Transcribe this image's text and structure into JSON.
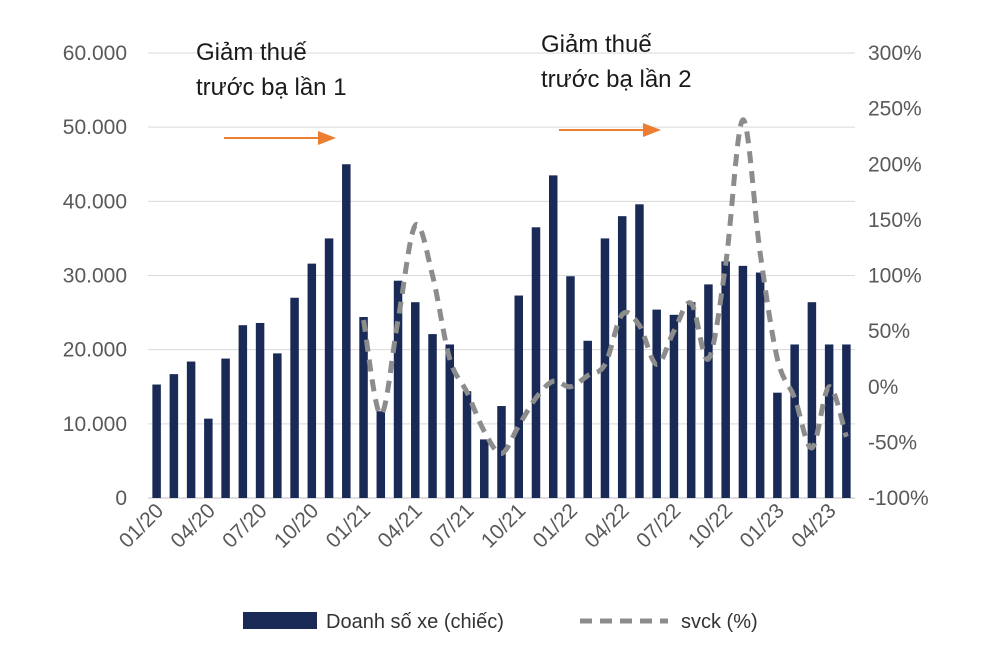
{
  "chart_data": {
    "type": "bar",
    "categories": [
      "01/20",
      "02/20",
      "03/20",
      "04/20",
      "05/20",
      "06/20",
      "07/20",
      "08/20",
      "09/20",
      "10/20",
      "11/20",
      "12/20",
      "01/21",
      "02/21",
      "03/21",
      "04/21",
      "05/21",
      "06/21",
      "07/21",
      "08/21",
      "09/21",
      "10/21",
      "11/21",
      "12/21",
      "01/22",
      "02/22",
      "03/22",
      "04/22",
      "05/22",
      "06/22",
      "07/22",
      "08/22",
      "09/22",
      "10/22",
      "11/22",
      "12/22",
      "01/23",
      "02/23",
      "03/23",
      "04/23",
      "05/23"
    ],
    "x_tick_labels": [
      "01/20",
      "04/20",
      "07/20",
      "10/20",
      "01/21",
      "04/21",
      "07/21",
      "10/21",
      "01/22",
      "04/22",
      "07/22",
      "10/22",
      "01/23",
      "04/23"
    ],
    "series": [
      {
        "name": "Doanh số xe (chiếc)",
        "axis": "left",
        "kind": "bar",
        "values": [
          15300,
          16700,
          18400,
          10700,
          18800,
          23300,
          23600,
          19500,
          27000,
          31600,
          35000,
          45000,
          24400,
          11700,
          29300,
          26400,
          22100,
          20700,
          14400,
          7900,
          12400,
          27300,
          36500,
          43500,
          29900,
          21200,
          35000,
          38000,
          39600,
          25400,
          24700,
          26400,
          28800,
          31900,
          31300,
          30400,
          14200,
          20700,
          26400,
          20700,
          20700
        ]
      },
      {
        "name": "svck (%)",
        "axis": "right",
        "kind": "line",
        "values": [
          null,
          null,
          null,
          null,
          null,
          null,
          null,
          null,
          null,
          null,
          null,
          null,
          60,
          -25,
          60,
          145,
          100,
          25,
          -5,
          -40,
          -60,
          -35,
          -10,
          5,
          0,
          10,
          20,
          65,
          55,
          20,
          50,
          75,
          25,
          110,
          240,
          120,
          25,
          -10,
          -55,
          0,
          -45
        ]
      }
    ],
    "left_axis": {
      "ticks": [
        "0",
        "10.000",
        "20.000",
        "30.000",
        "40.000",
        "50.000",
        "60.000"
      ],
      "ylim": [
        0,
        60000
      ]
    },
    "right_axis": {
      "ticks": [
        "-100%",
        "-50%",
        "0%",
        "50%",
        "100%",
        "150%",
        "200%",
        "250%",
        "300%"
      ],
      "ylim": [
        -100,
        300
      ]
    },
    "annotations": [
      {
        "lines": [
          "Giảm thuế",
          "trước bạ lần 1"
        ]
      },
      {
        "lines": [
          "Giảm thuế",
          "trước bạ lần 2"
        ]
      }
    ],
    "grid": true,
    "legend_position": "bottom",
    "colors": {
      "bars": "#1a2a56",
      "line": "#8c8c8c",
      "arrow": "#ed7d31",
      "grid": "#d9d9d9",
      "tick": "#595959"
    }
  }
}
